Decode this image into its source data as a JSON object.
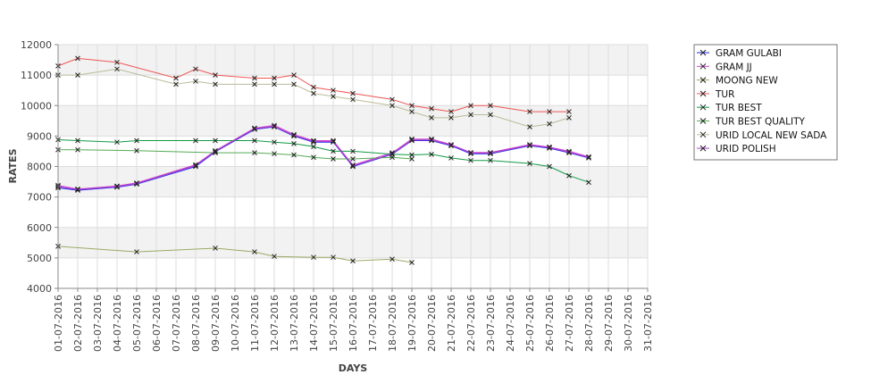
{
  "chart_data": {
    "type": "line",
    "title": "",
    "xlabel": "DAYS",
    "ylabel": "RATES",
    "ylim": [
      4000,
      12000
    ],
    "yticks": [
      4000,
      5000,
      6000,
      7000,
      8000,
      9000,
      10000,
      11000,
      12000
    ],
    "grid": true,
    "legend_position": "right",
    "categories": [
      "01-07-2016",
      "02-07-2016",
      "03-07-2016",
      "04-07-2016",
      "05-07-2016",
      "06-07-2016",
      "07-07-2016",
      "08-07-2016",
      "09-07-2016",
      "10-07-2016",
      "11-07-2016",
      "12-07-2016",
      "13-07-2016",
      "14-07-2016",
      "15-07-2016",
      "16-07-2016",
      "17-07-2016",
      "18-07-2016",
      "19-07-2016",
      "20-07-2016",
      "21-07-2016",
      "22-07-2016",
      "23-07-2016",
      "24-07-2016",
      "25-07-2016",
      "26-07-2016",
      "27-07-2016",
      "28-07-2016",
      "29-07-2016",
      "30-07-2016",
      "31-07-2016"
    ],
    "series": [
      {
        "name": "GRAM GULABI",
        "color": "#2222ee",
        "values": [
          7300,
          7220,
          null,
          7320,
          7420,
          null,
          null,
          8000,
          8480,
          null,
          9220,
          9300,
          9000,
          8800,
          8800,
          8000,
          null,
          8400,
          8850,
          8850,
          8680,
          8420,
          8420,
          null,
          8680,
          8600,
          8450,
          8280,
          null,
          null,
          null
        ]
      },
      {
        "name": "GRAM JJ",
        "color": "#cc44cc",
        "values": [
          7380,
          7260,
          null,
          7360,
          7460,
          null,
          null,
          8060,
          8520,
          null,
          9260,
          9350,
          9050,
          8850,
          8850,
          8050,
          null,
          8450,
          8900,
          8900,
          8720,
          8460,
          8460,
          null,
          8720,
          8640,
          8500,
          8320,
          null,
          null,
          null
        ]
      },
      {
        "name": "MOONG NEW",
        "color": "#99aa66",
        "values": [
          5380,
          null,
          null,
          null,
          5200,
          null,
          null,
          null,
          5320,
          null,
          5200,
          5050,
          null,
          5020,
          5020,
          4900,
          null,
          4960,
          4850,
          null,
          null,
          null,
          null,
          null,
          null,
          null,
          null,
          null,
          null,
          null,
          null
        ]
      },
      {
        "name": "TUR",
        "color": "#ee5555",
        "values": [
          11300,
          11550,
          null,
          11420,
          null,
          null,
          10900,
          11200,
          11000,
          null,
          10900,
          10900,
          11000,
          10600,
          10500,
          10400,
          null,
          10200,
          10000,
          9900,
          9800,
          10000,
          10000,
          null,
          9800,
          9800,
          9800,
          null,
          null,
          null,
          null
        ]
      },
      {
        "name": "TUR BEST",
        "color": "#119944",
        "values": [
          8880,
          8850,
          null,
          8800,
          8850,
          null,
          null,
          8850,
          8850,
          null,
          8850,
          8800,
          8750,
          8650,
          8500,
          8500,
          null,
          8400,
          8380,
          8400,
          8280,
          8200,
          8200,
          null,
          8100,
          8000,
          7700,
          7480,
          null,
          null,
          null
        ]
      },
      {
        "name": "TUR BEST QUALITY",
        "color": "#55aa55",
        "values": [
          8550,
          8550,
          null,
          null,
          8520,
          null,
          null,
          null,
          8450,
          null,
          8450,
          8420,
          8380,
          8300,
          8250,
          8250,
          null,
          8300,
          8250,
          null,
          null,
          null,
          null,
          null,
          null,
          null,
          null,
          null,
          null,
          null,
          null
        ]
      },
      {
        "name": "URID LOCAL NEW SADA",
        "color": "#bbbb99",
        "values": [
          11000,
          11000,
          null,
          11200,
          null,
          null,
          10700,
          10800,
          10700,
          null,
          10700,
          10700,
          10700,
          10400,
          10300,
          10200,
          null,
          10000,
          9800,
          9600,
          9600,
          9700,
          9700,
          null,
          9300,
          9400,
          9600,
          null,
          null,
          null,
          null
        ]
      },
      {
        "name": "URID POLISH",
        "color": "#aa44cc",
        "values": [
          7340,
          7240,
          null,
          7340,
          7440,
          null,
          null,
          8030,
          8500,
          null,
          9240,
          9320,
          9020,
          8820,
          8820,
          8020,
          null,
          8420,
          8870,
          8870,
          8700,
          8440,
          8440,
          null,
          8700,
          8620,
          8470,
          8300,
          null,
          null,
          null
        ]
      }
    ]
  }
}
